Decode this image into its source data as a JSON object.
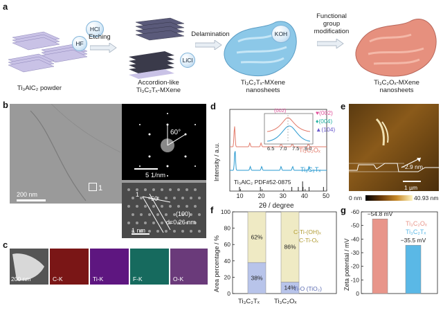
{
  "panel_labels": {
    "a": "a",
    "b": "b",
    "c": "c",
    "d": "d",
    "e": "e",
    "f": "f",
    "g": "g"
  },
  "panel_a": {
    "step1_caption": "Ti₃AlC₂ powder",
    "step2_caption_line1": "Accordion-like",
    "step2_caption_line2": "Ti₃C₂Tₓ-MXene",
    "step3_caption_line1": "Ti₃C₂Tₓ-MXene",
    "step3_caption_line2": "nanosheets",
    "step4_caption_line1": "Ti₃C₂Oₓ-MXene",
    "step4_caption_line2": "nanosheets",
    "arrow1_label": "Etching",
    "arrow2_label": "Delamination",
    "arrow3_label_line1": "Functional",
    "arrow3_label_line2": "group",
    "arrow3_label_line3": "modification",
    "bubble_hcl": "HCl",
    "bubble_hf": "HF",
    "bubble_licl": "LiCl",
    "bubble_koh": "KOH"
  },
  "panel_b": {
    "scale_main": "200 nm",
    "region_marker": "1",
    "saed_angle": "60°",
    "saed_scale": "5 1/nm",
    "hr_marker": "1",
    "hr_angle": "60",
    "hr_plane": "(100)",
    "hr_spacing": "d=0.26 nm",
    "hr_scale": "1 nm"
  },
  "panel_c": {
    "scale": "200 nm",
    "maps": [
      "C-K",
      "Ti-K",
      "F-K",
      "O-K"
    ],
    "colors": [
      "#8a1a1a",
      "#6a1a8a",
      "#1a7a6a",
      "#7a3a8a"
    ]
  },
  "panel_d": {
    "ylabel": "Intensity / a.u.",
    "xlabel": "2θ / degree",
    "legend": [
      "(002)",
      "(004)",
      "(104)"
    ],
    "legend_colors": [
      "#e0509a",
      "#20b0a0",
      "#6a5acd"
    ],
    "inset_label": "(002)",
    "inset_ticks": [
      "6.5",
      "7.0",
      "7.5",
      "8.0"
    ],
    "label_ox": "Ti₃C₂Oₓ",
    "label_tx": "Ti₃C₂Tₓ",
    "label_ref": "Ti₃AlC₂ PDF#52-0875",
    "ox_color": "#e27a6a",
    "tx_color": "#2a9ad0"
  },
  "panel_e": {
    "height_label": "~2.9 nm",
    "scale": "1 µm",
    "colorbar_min": "0 nm",
    "colorbar_max": "40.93 nm"
  },
  "panel_f": {
    "ylabel": "Area percentage / %",
    "legend_top_line1": "C-Ti-(OH)ₓ",
    "legend_top_line2": "C-Ti-Oₓ",
    "legend_bottom": "Ti-O (TiO₂)",
    "categories": [
      "Ti₃C₂Tₓ",
      "Ti₃C₂Oₓ"
    ]
  },
  "panel_g": {
    "ylabel": "Zeta potential / mV",
    "legend": [
      "Ti₃C₂Oₓ",
      "Ti₃C₂Tₓ"
    ],
    "colors": [
      "#e8958a",
      "#5ab8e6"
    ]
  },
  "chart_data": [
    {
      "type": "line",
      "panel": "d",
      "xlabel": "2θ / degree",
      "ylabel": "Intensity / a.u.",
      "xlim": [
        5,
        50
      ],
      "x_ticks": [
        10,
        20,
        30,
        40,
        50
      ],
      "series": [
        {
          "name": "Ti₃C₂Oₓ",
          "peaks": [
            7.2,
            14.3,
            19.5,
            28.8,
            34.0,
            41.5
          ]
        },
        {
          "name": "Ti₃C₂Tₓ",
          "peaks": [
            7.4,
            14.5,
            19.8,
            28.8,
            34.2,
            41.8
          ]
        }
      ],
      "reference_lines": [
        9.5,
        19.2,
        33.8,
        36.8,
        38.8,
        39.0,
        41.8,
        48.5
      ]
    },
    {
      "type": "bar",
      "panel": "f",
      "ylabel": "Area percentage / %",
      "ylim": [
        0,
        100
      ],
      "y_ticks": [
        0,
        20,
        40,
        60,
        80,
        100
      ],
      "categories": [
        "Ti₃C₂Tₓ",
        "Ti₃C₂Oₓ"
      ],
      "series": [
        {
          "values": [
            38,
            14
          ],
          "labels": [
            "38%",
            "14%"
          ]
        },
        {
          "values": [
            62,
            86
          ],
          "labels": [
            "62%",
            "86%"
          ]
        }
      ]
    },
    {
      "type": "bar",
      "panel": "g",
      "ylabel": "Zeta potential / mV",
      "ylim": [
        -60,
        0
      ],
      "y_ticks": [
        -60,
        -50,
        -40,
        -30,
        -20,
        -10,
        0
      ],
      "categories": [
        "Ti₃C₂Oₓ",
        "Ti₃C₂Tₓ"
      ],
      "values": [
        -54.8,
        -35.5
      ],
      "labels": [
        "−54.8 mV",
        "−35.5 mV"
      ]
    }
  ]
}
